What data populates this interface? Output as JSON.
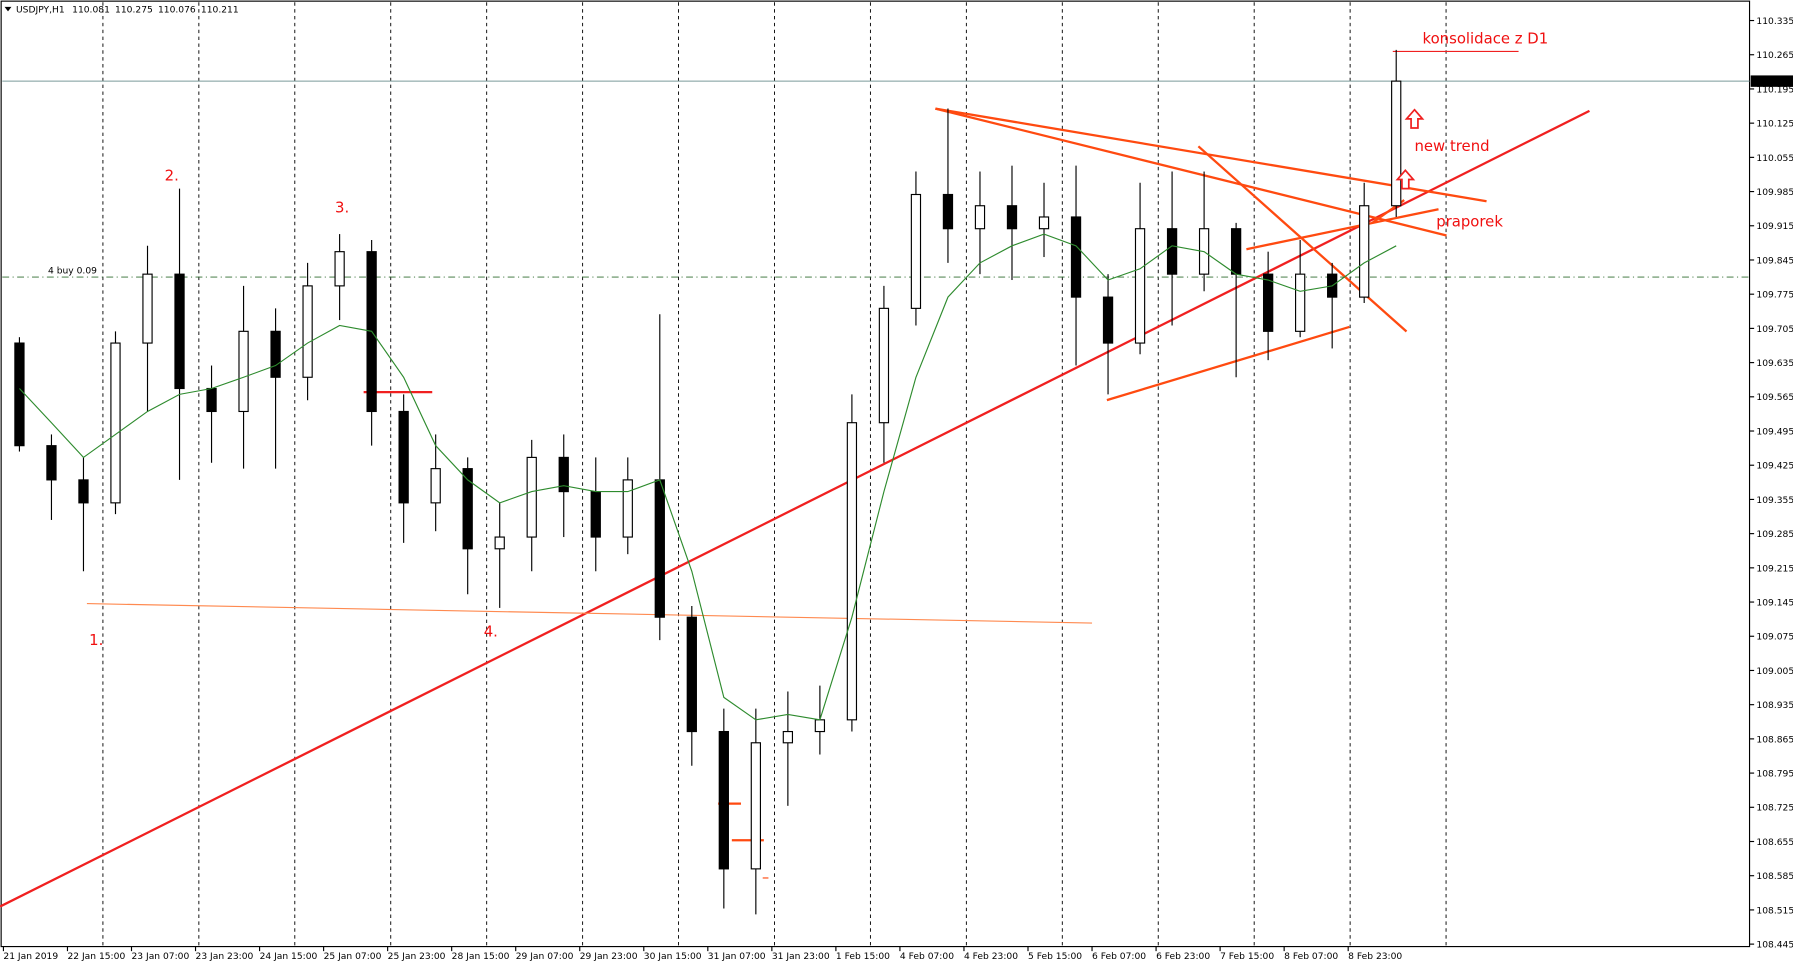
{
  "chart_data": {
    "type": "candlestick",
    "symbol": "USDJPY,H1",
    "header_ohlc": [
      110.081,
      110.275,
      110.076,
      110.211
    ],
    "x": [
      "21 Jan 2019",
      null,
      "22 Jan 15:00",
      null,
      "23 Jan 07:00",
      null,
      "23 Jan 23:00",
      null,
      "24 Jan 15:00",
      null,
      "25 Jan 07:00",
      null,
      "25 Jan 23:00",
      null,
      "28 Jan 15:00",
      null,
      "29 Jan 07:00",
      null,
      "29 Jan 23:00",
      null,
      "30 Jan 15:00",
      null,
      "31 Jan 07:00",
      null,
      "31 Jan 23:00",
      null,
      "1 Feb 15:00",
      null,
      "4 Feb 07:00",
      null,
      "4 Feb 23:00",
      null,
      "5 Feb 15:00",
      null,
      "6 Feb 07:00",
      null,
      "6 Feb 23:00",
      null,
      "7 Feb 15:00",
      null,
      "8 Feb 07:00",
      null,
      "8 Feb 23:00",
      null
    ],
    "open": [
      109.675,
      109.465,
      109.395,
      109.348,
      109.675,
      109.816,
      109.582,
      109.535,
      109.699,
      109.605,
      109.792,
      109.862,
      109.535,
      109.348,
      109.418,
      109.254,
      109.278,
      109.441,
      109.371,
      109.278,
      109.395,
      109.114,
      108.88,
      108.599,
      108.857,
      108.88,
      108.904,
      109.512,
      109.746,
      109.979,
      109.909,
      109.956,
      109.909,
      109.933,
      109.769,
      109.675,
      109.909,
      109.816,
      109.909,
      109.816,
      109.699,
      109.816,
      109.769,
      109.956
    ],
    "high": [
      109.687,
      109.488,
      109.441,
      109.699,
      109.874,
      109.991,
      109.629,
      109.792,
      109.746,
      109.839,
      109.898,
      109.886,
      109.57,
      109.488,
      109.441,
      109.348,
      109.477,
      109.488,
      109.441,
      109.441,
      109.734,
      109.137,
      108.927,
      108.927,
      108.962,
      108.974,
      109.57,
      109.792,
      110.026,
      110.155,
      110.026,
      110.038,
      110.003,
      110.038,
      109.816,
      110.003,
      110.026,
      110.026,
      109.921,
      109.862,
      109.886,
      109.839,
      110.003,
      110.275
    ],
    "low": [
      109.453,
      109.313,
      109.208,
      109.325,
      109.535,
      109.395,
      109.43,
      109.418,
      109.418,
      109.558,
      109.722,
      109.465,
      109.266,
      109.29,
      109.161,
      109.133,
      109.208,
      109.278,
      109.208,
      109.243,
      109.067,
      108.81,
      108.518,
      108.506,
      108.728,
      108.833,
      108.88,
      109.43,
      109.711,
      109.839,
      109.816,
      109.804,
      109.851,
      109.629,
      109.57,
      109.652,
      109.711,
      109.781,
      109.605,
      109.64,
      109.687,
      109.664,
      109.757,
      109.933
    ],
    "close": [
      109.465,
      109.395,
      109.348,
      109.675,
      109.816,
      109.582,
      109.535,
      109.699,
      109.605,
      109.792,
      109.862,
      109.535,
      109.348,
      109.418,
      109.254,
      109.278,
      109.441,
      109.371,
      109.278,
      109.395,
      109.114,
      108.88,
      108.599,
      108.857,
      108.88,
      108.904,
      109.512,
      109.746,
      109.979,
      109.909,
      109.956,
      109.909,
      109.933,
      109.769,
      109.675,
      109.909,
      109.816,
      109.909,
      109.816,
      109.699,
      109.816,
      109.769,
      109.956,
      110.211
    ],
    "ma": {
      "color": "#2e8b2e",
      "values": [
        109.582,
        109.512,
        109.441,
        109.488,
        109.535,
        109.57,
        109.582,
        109.605,
        109.629,
        109.675,
        109.711,
        109.699,
        109.605,
        109.465,
        109.395,
        109.348,
        109.371,
        109.383,
        109.371,
        109.371,
        109.395,
        109.208,
        108.95,
        108.904,
        108.915,
        108.904,
        109.114,
        109.371,
        109.605,
        109.769,
        109.839,
        109.874,
        109.898,
        109.874,
        109.804,
        109.827,
        109.874,
        109.862,
        109.816,
        109.804,
        109.781,
        109.792,
        109.839,
        109.874
      ]
    },
    "ylim": [
      108.44,
      110.37
    ],
    "yticks": [
      108.445,
      108.515,
      108.585,
      108.655,
      108.725,
      108.795,
      108.865,
      108.935,
      109.005,
      109.075,
      109.145,
      109.215,
      109.285,
      109.355,
      109.425,
      109.495,
      109.565,
      109.635,
      109.705,
      109.775,
      109.845,
      109.915,
      109.985,
      110.055,
      110.125,
      110.195,
      110.265,
      110.335
    ],
    "price_line": 110.211,
    "buy_line": 109.81,
    "buy_label": "4 buy 0.09",
    "annotations": [
      "konsolidace z D1",
      "new trend",
      "praporek",
      "1.",
      "2.",
      "3.",
      "4."
    ]
  }
}
